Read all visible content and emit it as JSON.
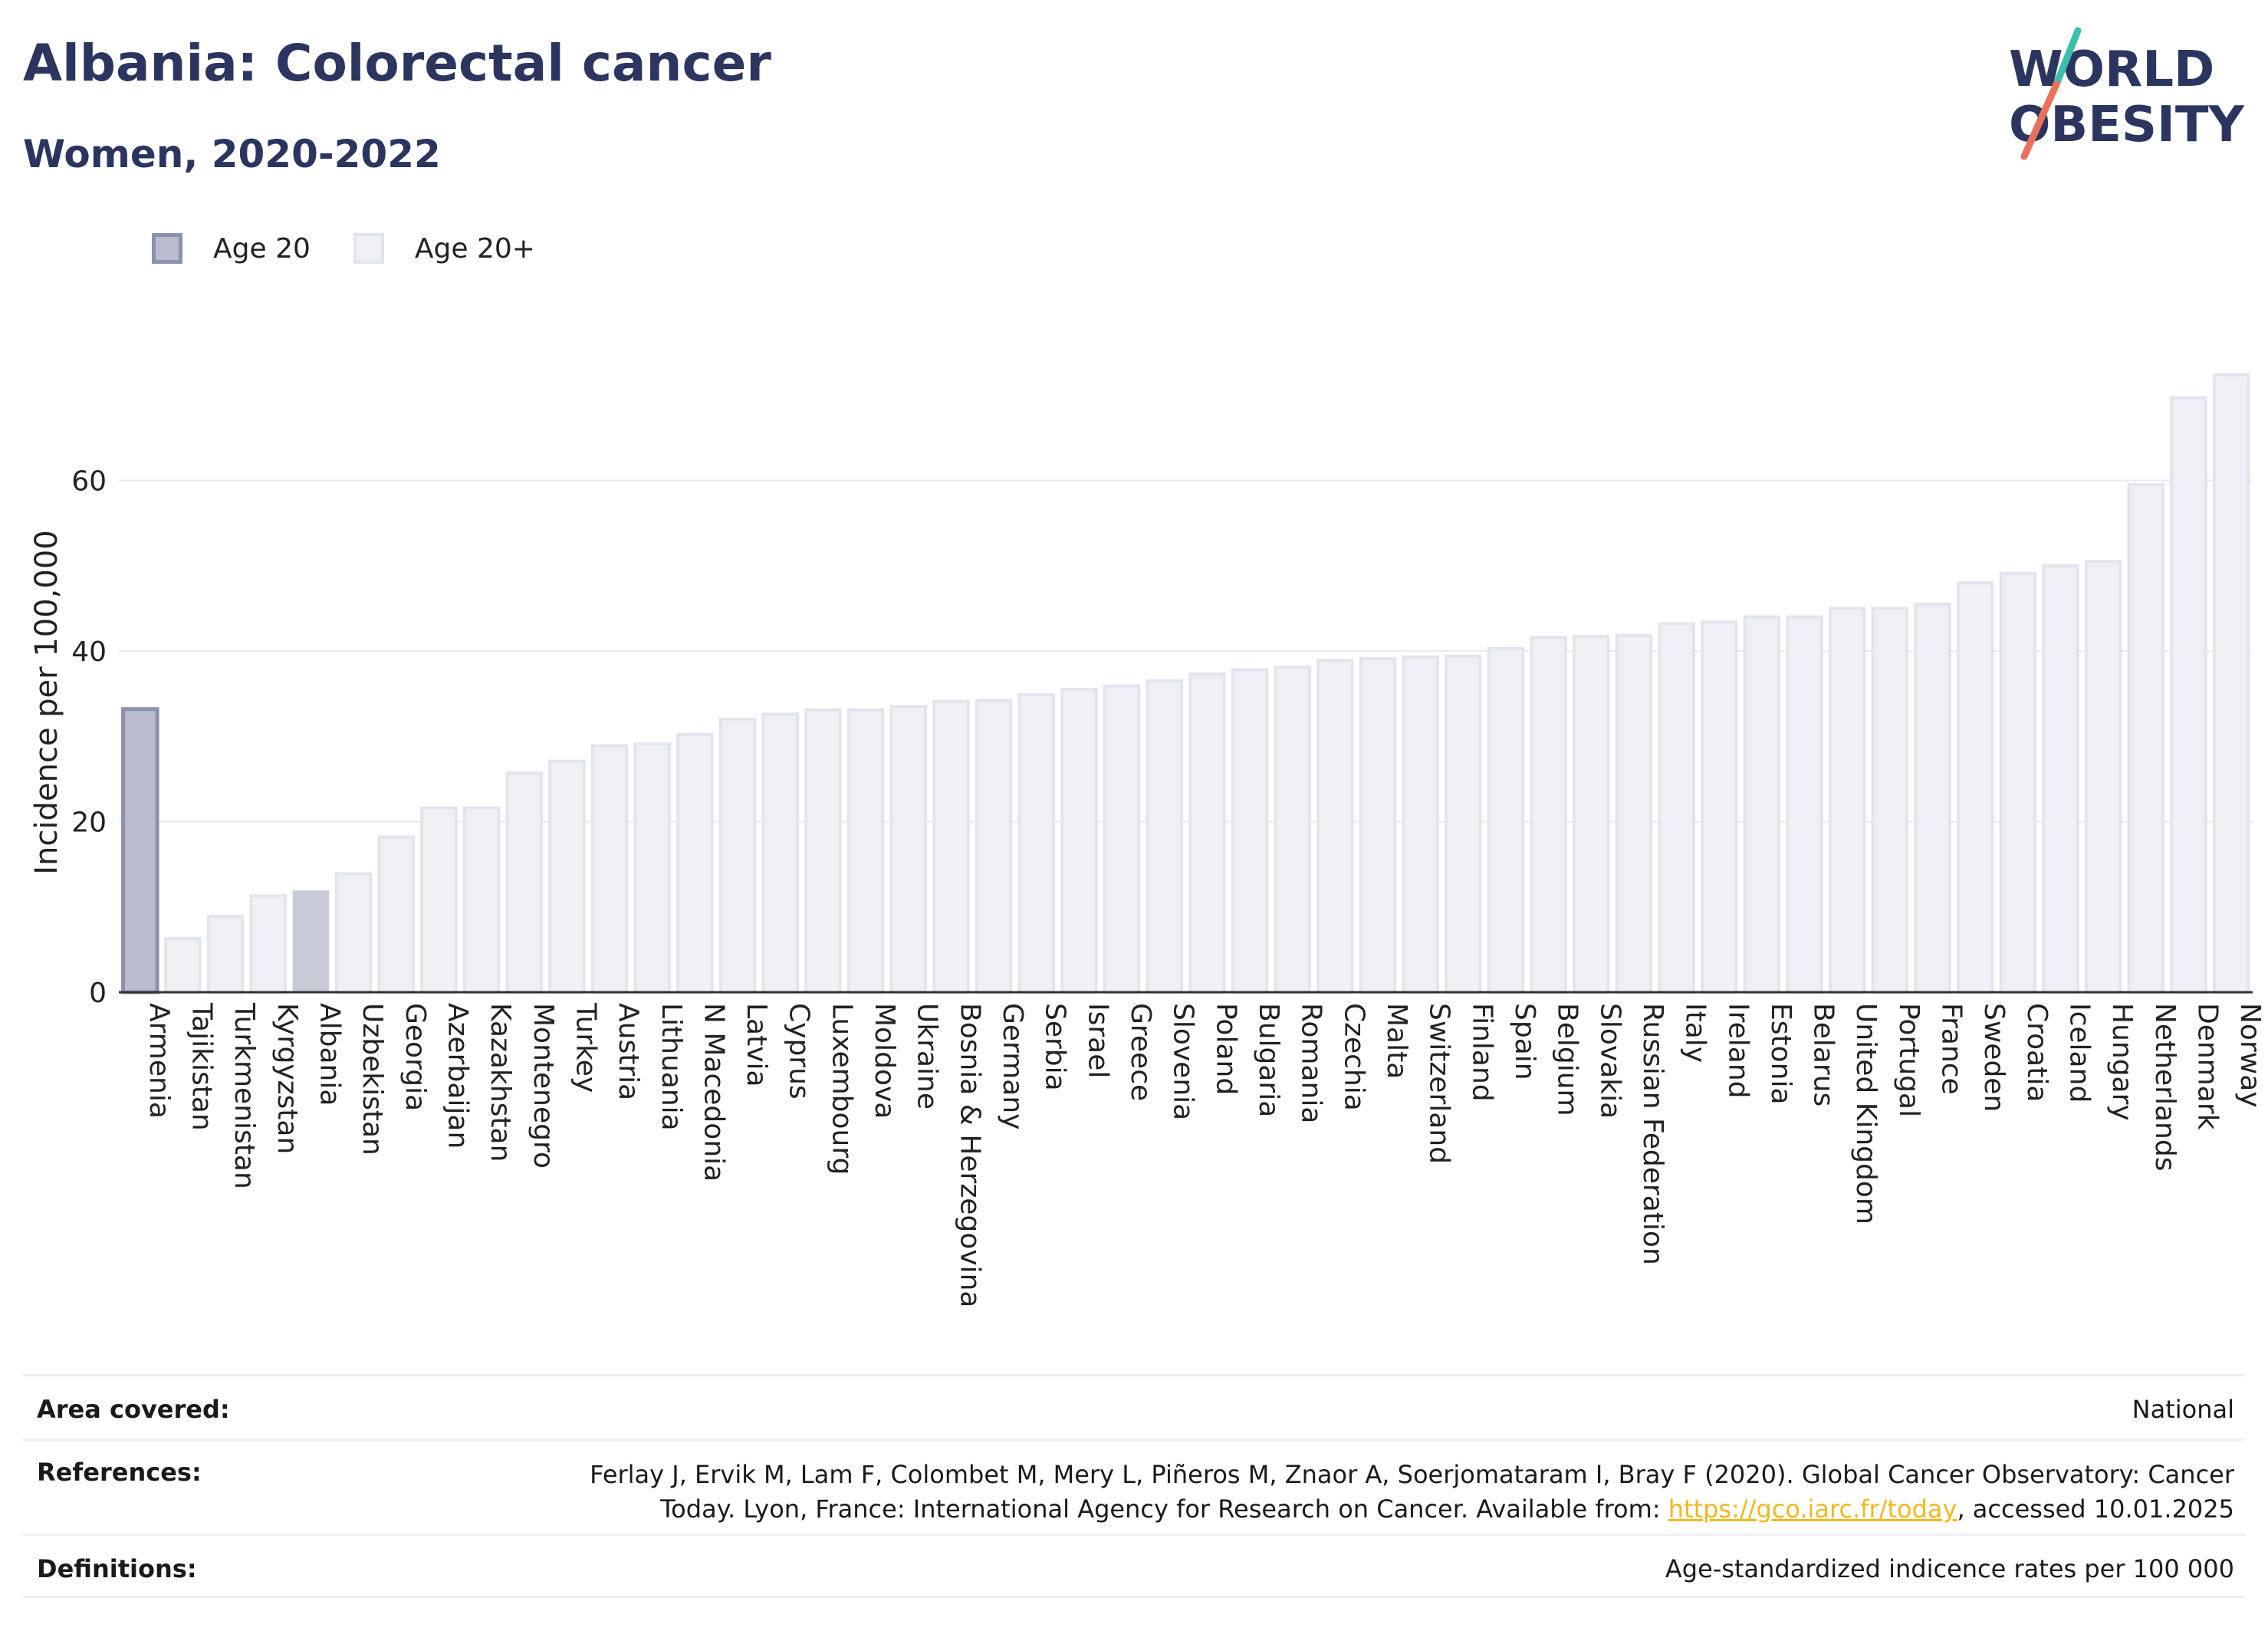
{
  "title": "Albania: Colorectal cancer",
  "subtitle": "Women, 2020-2022",
  "logo": {
    "line1": "WORLD",
    "line2": "OBESITY",
    "accent_teal": "#3bbfad",
    "accent_coral": "#e8735a"
  },
  "legend": [
    {
      "label": "Age 20",
      "color": "#b9bccd"
    },
    {
      "label": "Age 20+",
      "color": "#eff0f4"
    }
  ],
  "chart_data": {
    "type": "bar",
    "ylabel": "Incidence per 100,000",
    "ylim": [
      0,
      73
    ],
    "yticks": [
      0,
      20,
      40,
      60
    ],
    "grid": true,
    "highlight": "Albania",
    "colors": {
      "highlight": "#c8cad8",
      "default": "#eff0f4",
      "age20": "#b9bccd"
    },
    "categories": [
      "Armenia",
      "Tajikistan",
      "Turkmenistan",
      "Kyrgyzstan",
      "Albania",
      "Uzbekistan",
      "Georgia",
      "Azerbaijan",
      "Kazakhstan",
      "Montenegro",
      "Turkey",
      "Austria",
      "Lithuania",
      "N Macedonia",
      "Latvia",
      "Cyprus",
      "Luxembourg",
      "Moldova",
      "Ukraine",
      "Bosnia & Herzegovina",
      "Germany",
      "Serbia",
      "Israel",
      "Greece",
      "Slovenia",
      "Poland",
      "Bulgaria",
      "Romania",
      "Czechia",
      "Malta",
      "Switzerland",
      "Finland",
      "Spain",
      "Belgium",
      "Slovakia",
      "Russian Federation",
      "Italy",
      "Ireland",
      "Estonia",
      "Belarus",
      "United Kingdom",
      "Portugal",
      "France",
      "Sweden",
      "Croatia",
      "Iceland",
      "Hungary",
      "Netherlands",
      "Denmark",
      "Norway"
    ],
    "series": [
      {
        "name": "Age 20",
        "values": [
          33.2,
          null,
          null,
          null,
          null,
          null,
          null,
          null,
          null,
          null,
          null,
          null,
          null,
          null,
          null,
          null,
          null,
          null,
          null,
          null,
          null,
          null,
          null,
          null,
          null,
          null,
          null,
          null,
          null,
          null,
          null,
          null,
          null,
          null,
          null,
          null,
          null,
          null,
          null,
          null,
          null,
          null,
          null,
          null,
          null,
          null,
          null,
          null,
          null,
          null
        ]
      },
      {
        "name": "Age 20+",
        "values": [
          null,
          6.3,
          8.9,
          11.3,
          11.8,
          13.9,
          18.2,
          21.6,
          21.6,
          25.7,
          27.1,
          28.9,
          29.1,
          30.2,
          32.0,
          32.6,
          33.1,
          33.1,
          33.5,
          34.1,
          34.2,
          34.9,
          35.5,
          35.9,
          36.5,
          37.3,
          37.8,
          38.1,
          38.9,
          39.1,
          39.3,
          39.4,
          40.3,
          41.6,
          41.7,
          41.8,
          43.2,
          43.4,
          44.0,
          44.0,
          45.0,
          45.0,
          45.5,
          48.0,
          49.1,
          50.0,
          50.5,
          59.5,
          69.7,
          72.4
        ]
      }
    ]
  },
  "info": {
    "area_label": "Area covered:",
    "area_value": "National",
    "ref_label": "References:",
    "ref_text_1": "Ferlay J, Ervik M, Lam F, Colombet M, Mery L, Piñeros M, Znaor A, Soerjomataram I, Bray F (2020). Global Cancer Observatory: Cancer Today. Lyon, France: International Agency for Research on Cancer. Available from: ",
    "ref_link": "https://gco.iarc.fr/today",
    "ref_text_2": ", accessed 10.01.2025",
    "def_label": "Definitions:",
    "def_value": "Age-standardized indicence rates per 100 000"
  }
}
